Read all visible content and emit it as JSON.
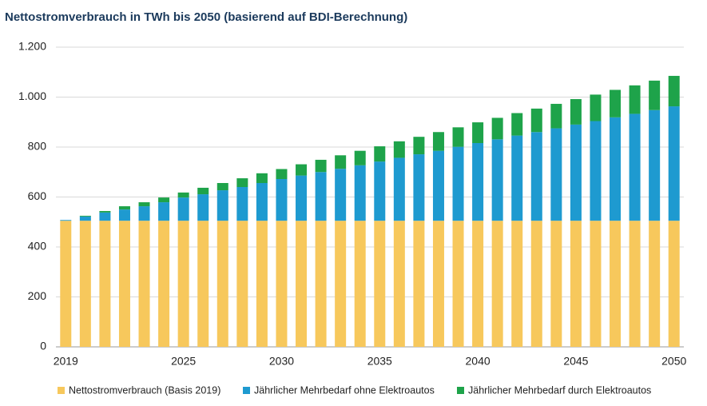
{
  "chart_data": {
    "type": "stacked-bar",
    "title": "Nettostromverbrauch in TWh bis 2050 (basierend auf BDI-Berechnung)",
    "categories": [
      "2019",
      null,
      null,
      null,
      null,
      null,
      "2025",
      null,
      null,
      null,
      null,
      "2030",
      null,
      null,
      null,
      null,
      "2035",
      null,
      null,
      null,
      null,
      "2040",
      null,
      null,
      null,
      null,
      "2045",
      null,
      null,
      null,
      null,
      "2050"
    ],
    "series": [
      {
        "name": "Nettostromverbrauch (Basis 2019)",
        "color": "#f7c85c",
        "values": [
          505,
          505,
          505,
          505,
          505,
          505,
          505,
          505,
          505,
          505,
          505,
          505,
          505,
          505,
          505,
          505,
          505,
          505,
          505,
          505,
          505,
          505,
          505,
          505,
          505,
          505,
          505,
          505,
          505,
          505,
          505,
          505
        ]
      },
      {
        "name": "Jährlicher Mehrbedarf ohne Elektroautos",
        "color": "#1e9ad0",
        "values": [
          3,
          17,
          33,
          45,
          58,
          74,
          93,
          106,
          122,
          135,
          151,
          167,
          181,
          195,
          208,
          222,
          237,
          252,
          266,
          280,
          296,
          311,
          326,
          341,
          355,
          370,
          385,
          399,
          414,
          428,
          443,
          458
        ]
      },
      {
        "name": "Jährlicher Mehrbedarf durch Elektroautos",
        "color": "#1ea34a",
        "values": [
          0,
          3,
          6,
          13,
          16,
          19,
          20,
          26,
          29,
          35,
          39,
          40,
          45,
          49,
          54,
          58,
          61,
          66,
          70,
          75,
          78,
          83,
          86,
          90,
          94,
          98,
          102,
          106,
          110,
          114,
          118,
          122
        ]
      }
    ],
    "ylim": [
      0,
      1200
    ],
    "yticks": [
      0,
      200,
      400,
      600,
      800,
      {
        "value": 1000,
        "label": "1.000"
      },
      {
        "value": 1200,
        "label": "1.200"
      }
    ],
    "grid": true
  }
}
